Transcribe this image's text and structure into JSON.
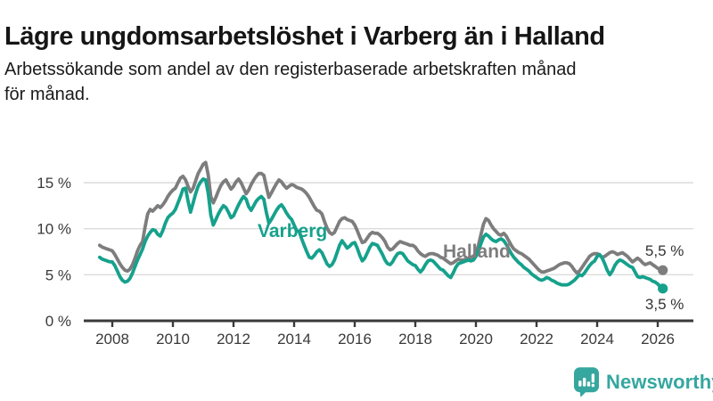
{
  "header": {
    "title": "Lägre ungdomsarbetslöshet i Varberg än i Halland",
    "subtitle_lines": [
      "Arbetssökande som andel av den registerbaserade arbetskraften månad",
      "för månad."
    ]
  },
  "branding": {
    "logo_text": "Newsworthy",
    "logo_color": "#35A79F",
    "logo_icon": "speech-bubble-bar-chart-exclamation"
  },
  "colors": {
    "varberg": "#16A18C",
    "halland": "#7D7D7D",
    "axis": "#3A3A3A",
    "grid": "#DBDBDB",
    "tick_text": "#3A3A3A",
    "value_text": "#333333"
  },
  "chart_data": {
    "type": "line",
    "title": "Lägre ungdomsarbetslöshet i Varberg än i Halland",
    "subtitle": "Arbetssökande som andel av den registerbaserade arbetskraften månad för månad.",
    "frequency": "monthly",
    "start": "2007-08",
    "grid": "horizontal",
    "legend": "inline-labels",
    "x_axis": {
      "tick_values": [
        2008,
        2010,
        2012,
        2014,
        2016,
        2018,
        2020,
        2022,
        2024,
        2026
      ],
      "tick_labels": [
        "2008",
        "2010",
        "2012",
        "2014",
        "2016",
        "2018",
        "2020",
        "2022",
        "2024",
        "2026"
      ]
    },
    "y_axis": {
      "unit": "%",
      "tick_values": [
        0,
        5,
        10,
        15
      ],
      "tick_labels": [
        "0 %",
        "5 %",
        "10 %",
        "15 %"
      ],
      "ylim": [
        0,
        17.5
      ]
    },
    "series": [
      {
        "name": "Halland",
        "color": "#7D7D7D",
        "end_label": "5,5 %",
        "end_value": 5.5,
        "values": [
          8.2,
          8.0,
          7.9,
          7.8,
          7.7,
          7.6,
          7.2,
          6.7,
          6.2,
          5.8,
          5.5,
          5.4,
          5.6,
          6.1,
          6.8,
          7.6,
          8.2,
          8.6,
          10.2,
          11.6,
          12.1,
          11.9,
          12.2,
          12.5,
          12.3,
          12.6,
          13.0,
          13.5,
          13.9,
          14.2,
          14.4,
          15.0,
          15.5,
          15.7,
          15.3,
          14.6,
          14.0,
          14.4,
          15.2,
          16.0,
          16.5,
          17.0,
          17.2,
          15.8,
          13.5,
          12.8,
          13.4,
          14.1,
          14.7,
          15.1,
          15.3,
          14.8,
          14.3,
          14.6,
          15.1,
          15.4,
          15.0,
          14.4,
          13.8,
          14.2,
          14.8,
          15.3,
          15.7,
          16.0,
          16.0,
          15.8,
          14.6,
          13.4,
          13.9,
          14.4,
          14.9,
          15.3,
          15.1,
          14.7,
          14.4,
          14.6,
          14.8,
          14.7,
          14.5,
          14.4,
          14.3,
          14.1,
          13.8,
          13.4,
          12.9,
          12.4,
          12.0,
          11.9,
          11.6,
          10.8,
          10.1,
          9.6,
          9.4,
          9.6,
          10.2,
          10.8,
          11.1,
          11.2,
          11.0,
          10.9,
          10.8,
          10.4,
          9.8,
          9.1,
          8.5,
          8.6,
          9.0,
          9.4,
          9.6,
          9.5,
          9.5,
          9.3,
          9.0,
          8.6,
          8.0,
          7.7,
          7.8,
          8.1,
          8.4,
          8.6,
          8.5,
          8.4,
          8.3,
          8.2,
          8.2,
          8.0,
          7.6,
          7.3,
          7.1,
          7.0,
          7.2,
          7.3,
          7.3,
          7.2,
          7.1,
          6.9,
          6.8,
          6.6,
          6.4,
          6.2,
          6.3,
          6.5,
          6.7,
          6.6,
          6.6,
          6.7,
          6.8,
          6.9,
          7.0,
          7.4,
          8.2,
          9.4,
          10.5,
          11.1,
          10.9,
          10.4,
          10.0,
          9.7,
          9.4,
          9.3,
          9.5,
          9.2,
          8.7,
          8.2,
          7.8,
          7.6,
          7.4,
          7.3,
          7.1,
          6.9,
          6.7,
          6.4,
          6.1,
          5.8,
          5.5,
          5.3,
          5.3,
          5.4,
          5.5,
          5.6,
          5.7,
          5.9,
          6.1,
          6.2,
          6.3,
          6.3,
          6.2,
          5.9,
          5.5,
          5.2,
          5.4,
          5.8,
          6.2,
          6.6,
          7.0,
          7.2,
          7.3,
          7.3,
          7.1,
          6.9,
          7.0,
          7.2,
          7.4,
          7.5,
          7.4,
          7.2,
          7.3,
          7.4,
          7.2,
          7.0,
          6.7,
          6.4,
          6.6,
          6.8,
          6.6,
          6.3,
          6.1,
          6.2,
          6.3,
          6.1,
          5.9,
          5.7,
          5.6,
          5.5
        ]
      },
      {
        "name": "Varberg",
        "color": "#16A18C",
        "end_label": "3,5 %",
        "end_value": 3.5,
        "values": [
          6.9,
          6.7,
          6.6,
          6.5,
          6.4,
          6.4,
          6.0,
          5.4,
          4.8,
          4.4,
          4.2,
          4.3,
          4.6,
          5.2,
          5.9,
          6.6,
          7.2,
          7.8,
          8.6,
          9.2,
          9.6,
          9.9,
          9.8,
          9.4,
          9.2,
          9.8,
          10.6,
          11.2,
          11.5,
          11.7,
          12.1,
          12.8,
          13.5,
          14.3,
          14.4,
          13.0,
          11.8,
          12.8,
          13.8,
          14.6,
          15.1,
          15.4,
          15.3,
          13.8,
          11.5,
          10.4,
          11.0,
          11.6,
          12.1,
          12.5,
          12.3,
          11.8,
          11.2,
          11.4,
          12.0,
          12.6,
          13.1,
          13.5,
          13.2,
          12.4,
          12.0,
          12.5,
          13.0,
          13.3,
          13.5,
          13.2,
          11.8,
          10.6,
          11.0,
          11.5,
          12.0,
          12.4,
          12.6,
          12.2,
          11.7,
          11.3,
          11.0,
          10.4,
          9.8,
          9.7,
          8.9,
          8.2,
          7.5,
          6.9,
          6.8,
          7.1,
          7.5,
          7.7,
          7.4,
          6.8,
          6.2,
          5.9,
          6.1,
          6.6,
          7.4,
          8.2,
          8.7,
          8.3,
          7.9,
          8.1,
          8.4,
          8.5,
          7.9,
          7.1,
          6.5,
          6.8,
          7.4,
          8.0,
          8.4,
          8.3,
          8.2,
          7.7,
          7.2,
          6.6,
          6.2,
          6.1,
          6.4,
          6.9,
          7.3,
          7.4,
          7.3,
          6.9,
          6.5,
          6.3,
          6.1,
          6.0,
          5.6,
          5.3,
          5.6,
          6.1,
          6.5,
          6.6,
          6.5,
          6.2,
          5.9,
          5.6,
          5.5,
          5.2,
          4.9,
          4.7,
          5.2,
          5.8,
          6.2,
          6.3,
          6.4,
          6.5,
          6.6,
          6.5,
          6.6,
          7.0,
          7.6,
          8.4,
          9.1,
          9.4,
          9.2,
          8.9,
          8.7,
          8.6,
          8.8,
          8.9,
          8.7,
          8.3,
          7.8,
          7.3,
          6.9,
          6.6,
          6.3,
          6.1,
          5.8,
          5.6,
          5.4,
          5.1,
          4.9,
          4.7,
          4.5,
          4.4,
          4.5,
          4.7,
          4.6,
          4.4,
          4.3,
          4.1,
          4.0,
          3.9,
          3.9,
          3.9,
          4.0,
          4.2,
          4.4,
          4.7,
          5.0,
          4.9,
          5.2,
          5.6,
          6.0,
          6.3,
          6.5,
          7.0,
          7.2,
          6.8,
          6.2,
          5.5,
          5.0,
          5.4,
          6.0,
          6.4,
          6.6,
          6.5,
          6.3,
          6.1,
          5.9,
          5.8,
          5.3,
          4.8,
          4.7,
          4.8,
          4.7,
          4.6,
          4.5,
          4.3,
          4.2,
          4.0,
          3.7,
          3.5
        ]
      }
    ]
  }
}
